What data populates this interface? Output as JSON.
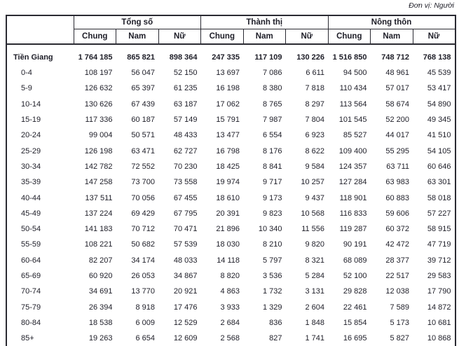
{
  "unit_label": "Đơn vị: Người",
  "colors": {
    "text": "#1d1d27",
    "border": "#2a2a32",
    "background": "#ffffff"
  },
  "table": {
    "corner_label": "",
    "groups": [
      {
        "label": "Tổng số"
      },
      {
        "label": "Thành thị"
      },
      {
        "label": "Nông thôn"
      }
    ],
    "sub_headers": [
      "Chung",
      "Nam",
      "Nữ",
      "Chung",
      "Nam",
      "Nữ",
      "Chung",
      "Nam",
      "Nữ"
    ],
    "rows": [
      {
        "label": "Tiền Giang",
        "bold": true,
        "values": [
          "1 764 185",
          "865 821",
          "898 364",
          "247 335",
          "117 109",
          "130 226",
          "1 516 850",
          "748 712",
          "768 138"
        ]
      },
      {
        "label": "0-4",
        "values": [
          "108 197",
          "56 047",
          "52 150",
          "13 697",
          "7 086",
          "6 611",
          "94 500",
          "48 961",
          "45 539"
        ]
      },
      {
        "label": "5-9",
        "values": [
          "126 632",
          "65 397",
          "61 235",
          "16 198",
          "8 380",
          "7 818",
          "110 434",
          "57 017",
          "53 417"
        ]
      },
      {
        "label": "10-14",
        "values": [
          "130 626",
          "67 439",
          "63 187",
          "17 062",
          "8 765",
          "8 297",
          "113 564",
          "58 674",
          "54 890"
        ]
      },
      {
        "label": "15-19",
        "values": [
          "117 336",
          "60 187",
          "57 149",
          "15 791",
          "7 987",
          "7 804",
          "101 545",
          "52 200",
          "49 345"
        ]
      },
      {
        "label": "20-24",
        "values": [
          "99 004",
          "50 571",
          "48 433",
          "13 477",
          "6 554",
          "6 923",
          "85 527",
          "44 017",
          "41 510"
        ]
      },
      {
        "label": "25-29",
        "values": [
          "126 198",
          "63 471",
          "62 727",
          "16 798",
          "8 176",
          "8 622",
          "109 400",
          "55 295",
          "54 105"
        ]
      },
      {
        "label": "30-34",
        "values": [
          "142 782",
          "72 552",
          "70 230",
          "18 425",
          "8 841",
          "9 584",
          "124 357",
          "63 711",
          "60 646"
        ]
      },
      {
        "label": "35-39",
        "values": [
          "147 258",
          "73 700",
          "73 558",
          "19 974",
          "9 717",
          "10 257",
          "127 284",
          "63 983",
          "63 301"
        ]
      },
      {
        "label": "40-44",
        "values": [
          "137 511",
          "70 056",
          "67 455",
          "18 610",
          "9 173",
          "9 437",
          "118 901",
          "60 883",
          "58 018"
        ]
      },
      {
        "label": "45-49",
        "values": [
          "137 224",
          "69 429",
          "67 795",
          "20 391",
          "9 823",
          "10 568",
          "116 833",
          "59 606",
          "57 227"
        ]
      },
      {
        "label": "50-54",
        "values": [
          "141 183",
          "70 712",
          "70 471",
          "21 896",
          "10 340",
          "11 556",
          "119 287",
          "60 372",
          "58 915"
        ]
      },
      {
        "label": "55-59",
        "values": [
          "108 221",
          "50 682",
          "57 539",
          "18 030",
          "8 210",
          "9 820",
          "90 191",
          "42 472",
          "47 719"
        ]
      },
      {
        "label": "60-64",
        "values": [
          "82 207",
          "34 174",
          "48 033",
          "14 118",
          "5 797",
          "8 321",
          "68 089",
          "28 377",
          "39 712"
        ]
      },
      {
        "label": "65-69",
        "values": [
          "60 920",
          "26 053",
          "34 867",
          "8 820",
          "3 536",
          "5 284",
          "52 100",
          "22 517",
          "29 583"
        ]
      },
      {
        "label": "70-74",
        "values": [
          "34 691",
          "13 770",
          "20 921",
          "4 863",
          "1 732",
          "3 131",
          "29 828",
          "12 038",
          "17 790"
        ]
      },
      {
        "label": "75-79",
        "values": [
          "26 394",
          "8 918",
          "17 476",
          "3 933",
          "1 329",
          "2 604",
          "22 461",
          "7 589",
          "14 872"
        ]
      },
      {
        "label": "80-84",
        "values": [
          "18 538",
          "6 009",
          "12 529",
          "2 684",
          "836",
          "1 848",
          "15 854",
          "5 173",
          "10 681"
        ]
      },
      {
        "label": "85+",
        "values": [
          "19 263",
          "6 654",
          "12 609",
          "2 568",
          "827",
          "1 741",
          "16 695",
          "5 827",
          "10 868"
        ]
      }
    ]
  }
}
